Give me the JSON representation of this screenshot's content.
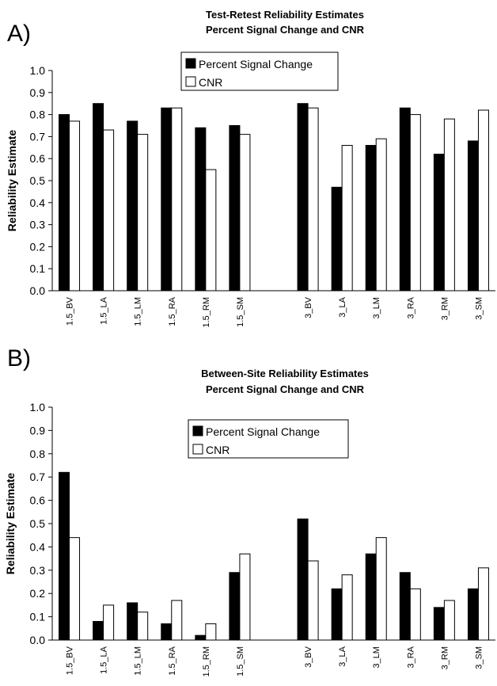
{
  "chart_data": [
    {
      "type": "bar",
      "panel_label": "A)",
      "title": "Test-Retest Reliability Estimates",
      "subtitle": "Percent Signal Change and CNR",
      "ylabel": "Reliability Estimate",
      "ylim": [
        0,
        1.0
      ],
      "yticks": [
        "0.0",
        "0.1",
        "0.2",
        "0.3",
        "0.4",
        "0.5",
        "0.6",
        "0.7",
        "0.8",
        "0.9",
        "1.0"
      ],
      "categories": [
        "1.5_BV",
        "1.5_LA",
        "1.5_LM",
        "1.5_RA",
        "1.5_RM",
        "1.5_SM",
        "3_BV",
        "3_LA",
        "3_LM",
        "3_RA",
        "3_RM",
        "3_SM"
      ],
      "series": [
        {
          "name": "Percent Signal Change",
          "color": "#000000",
          "values": [
            0.8,
            0.85,
            0.77,
            0.83,
            0.74,
            0.75,
            0.85,
            0.47,
            0.66,
            0.83,
            0.62,
            0.68
          ]
        },
        {
          "name": "CNR",
          "color": "#ffffff",
          "values": [
            0.77,
            0.73,
            0.71,
            0.83,
            0.55,
            0.71,
            0.83,
            0.66,
            0.69,
            0.8,
            0.78,
            0.82
          ]
        }
      ],
      "legend": "top-center",
      "grid": false
    },
    {
      "type": "bar",
      "panel_label": "B)",
      "title": "Between-Site Reliability Estimates",
      "subtitle": "Percent Signal Change and CNR",
      "ylabel": "Reliability Estimate",
      "ylim": [
        0,
        1.0
      ],
      "yticks": [
        "0.0",
        "0.1",
        "0.2",
        "0.3",
        "0.4",
        "0.5",
        "0.6",
        "0.7",
        "0.8",
        "0.9",
        "1.0"
      ],
      "categories": [
        "1.5_BV",
        "1.5_LA",
        "1.5_LM",
        "1.5_RA",
        "1.5_RM",
        "1.5_SM",
        "3_BV",
        "3_LA",
        "3_LM",
        "3_RA",
        "3_RM",
        "3_SM"
      ],
      "series": [
        {
          "name": "Percent Signal Change",
          "color": "#000000",
          "values": [
            0.72,
            0.08,
            0.16,
            0.07,
            0.02,
            0.29,
            0.52,
            0.22,
            0.37,
            0.29,
            0.14,
            0.22
          ]
        },
        {
          "name": "CNR",
          "color": "#ffffff",
          "values": [
            0.44,
            0.15,
            0.12,
            0.17,
            0.07,
            0.37,
            0.34,
            0.28,
            0.44,
            0.22,
            0.17,
            0.31
          ]
        }
      ],
      "legend": "top-center",
      "grid": false
    }
  ]
}
